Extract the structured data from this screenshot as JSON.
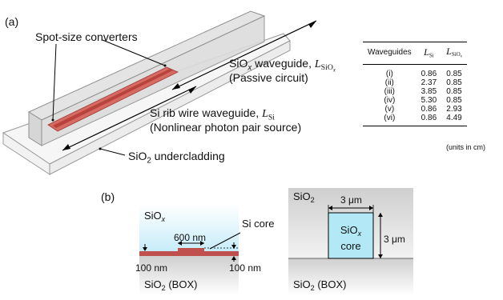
{
  "panel_a": {
    "label": "(a)",
    "spot_size": "Spot-size converters",
    "siox_line1_prefix": "SiO",
    "siox_sub": "x",
    "siox_line1_suffix": " waveguide, ",
    "L_symbol": "L",
    "L_siox_sub": "SiO",
    "L_siox_subsub": "x",
    "siox_line2": "(Passive circuit)",
    "si_line1": "Si rib wire waveguide, ",
    "L_si_sub": "Si",
    "si_line2": "(Nonlinear photon pair source)",
    "under_prefix": "SiO",
    "under_sub": "2",
    "under_suffix": " undercladding"
  },
  "table": {
    "col_waveguides": "Waveguides",
    "col_lsi": "L",
    "col_lsi_sub": "Si",
    "col_lsiox": "L",
    "col_lsiox_sub": "SiO",
    "col_lsiox_subsub": "x",
    "rows": [
      {
        "id": "(i)",
        "lsi": "0.86",
        "lsiox": "0.85"
      },
      {
        "id": "(ii)",
        "lsi": "2.37",
        "lsiox": "0.85"
      },
      {
        "id": "(iii)",
        "lsi": "3.85",
        "lsiox": "0.85"
      },
      {
        "id": "(iv)",
        "lsi": "5.30",
        "lsiox": "0.85"
      },
      {
        "id": "(v)",
        "lsi": "0.86",
        "lsiox": "2.93"
      },
      {
        "id": "(vi)",
        "lsi": "0.86",
        "lsiox": "4.49"
      }
    ],
    "units": "(units in cm)"
  },
  "panel_b": {
    "label": "(b)",
    "left": {
      "siox": "SiO",
      "siox_sub": "x",
      "si_core": "Si core",
      "width": "600 nm",
      "h_left": "100 nm",
      "h_right": "100 nm",
      "box_prefix": "SiO",
      "box_sub": "2",
      "box_suffix": " (BOX)"
    },
    "right": {
      "sio2": "SiO",
      "sio2_sub": "2",
      "width": "3 μm",
      "height": "3 μm",
      "core_line1": "SiO",
      "core_sub": "x",
      "core_line2": "core",
      "box_prefix": "SiO",
      "box_sub": "2",
      "box_suffix": " (BOX)"
    }
  },
  "colors": {
    "siox": "#cdeefb",
    "si": "#c0504d",
    "sio2": "#d4d4d4",
    "core": "#b3e9f7"
  }
}
